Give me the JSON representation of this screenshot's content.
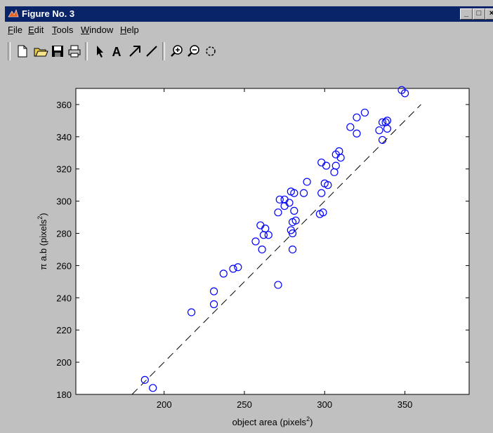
{
  "window": {
    "title": "Figure No. 3",
    "controls": [
      "_",
      "□",
      "×"
    ]
  },
  "menu": [
    {
      "label": "File",
      "accel": "F",
      "rest": "ile"
    },
    {
      "label": "Edit",
      "accel": "E",
      "rest": "dit"
    },
    {
      "label": "Tools",
      "accel": "T",
      "rest": "ools"
    },
    {
      "label": "Window",
      "accel": "W",
      "rest": "indow"
    },
    {
      "label": "Help",
      "accel": "H",
      "rest": "elp"
    }
  ],
  "toolbar": {
    "icons": [
      "new-file-icon",
      "open-folder-icon",
      "save-icon",
      "print-icon",
      "select-arrow-icon",
      "text-icon",
      "arrow-icon",
      "line-icon",
      "zoom-in-icon",
      "zoom-out-icon",
      "rotate-icon"
    ],
    "text_label": "A"
  },
  "colors": {
    "marker": "#0000ff",
    "titlebar": "#0a246a",
    "window": "#c0c0c0"
  },
  "chart_data": {
    "type": "scatter",
    "xlabel": "object area   (pixels",
    "ylabel": "π a.b  (pixels",
    "label_superscript": "2",
    "label_close": ")",
    "xlim": [
      145,
      390
    ],
    "ylim": [
      180,
      370
    ],
    "xticks": [
      200,
      250,
      300,
      350
    ],
    "yticks": [
      180,
      200,
      220,
      240,
      260,
      280,
      300,
      320,
      340,
      360
    ],
    "reference_line": {
      "style": "dashed",
      "from": [
        180,
        180
      ],
      "to": [
        360,
        360
      ]
    },
    "points": [
      [
        188,
        189
      ],
      [
        193,
        184
      ],
      [
        217,
        231
      ],
      [
        231,
        244
      ],
      [
        231,
        236
      ],
      [
        237,
        255
      ],
      [
        243,
        258
      ],
      [
        246,
        259
      ],
      [
        257,
        275
      ],
      [
        260,
        285
      ],
      [
        261,
        270
      ],
      [
        262,
        279
      ],
      [
        263,
        283
      ],
      [
        265,
        279
      ],
      [
        271,
        293
      ],
      [
        271,
        248
      ],
      [
        272,
        301
      ],
      [
        275,
        301
      ],
      [
        275,
        297
      ],
      [
        278,
        299
      ],
      [
        279,
        306
      ],
      [
        279,
        282
      ],
      [
        280,
        280
      ],
      [
        280,
        270
      ],
      [
        280,
        287
      ],
      [
        281,
        294
      ],
      [
        281,
        305
      ],
      [
        282,
        288
      ],
      [
        287,
        305
      ],
      [
        289,
        312
      ],
      [
        297,
        292
      ],
      [
        298,
        324
      ],
      [
        298,
        305
      ],
      [
        299,
        293
      ],
      [
        300,
        311
      ],
      [
        301,
        322
      ],
      [
        302,
        310
      ],
      [
        306,
        318
      ],
      [
        307,
        322
      ],
      [
        307,
        329
      ],
      [
        309,
        331
      ],
      [
        310,
        327
      ],
      [
        316,
        346
      ],
      [
        320,
        342
      ],
      [
        320,
        352
      ],
      [
        325,
        355
      ],
      [
        334,
        344
      ],
      [
        336,
        338
      ],
      [
        336,
        349
      ],
      [
        338,
        349
      ],
      [
        339,
        345
      ],
      [
        339,
        350
      ],
      [
        348,
        369
      ],
      [
        350,
        367
      ]
    ]
  }
}
